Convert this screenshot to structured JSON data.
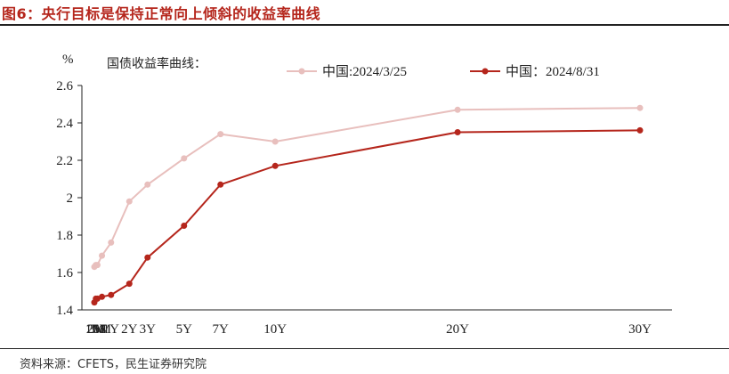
{
  "figure": {
    "title": "图6：央行目标是保持正常向上倾斜的收益率曲线",
    "source": "资料来源：CFETS，民生证券研究院"
  },
  "chart_data": {
    "type": "line",
    "title": "国债收益率曲线：",
    "ylabel": "%",
    "ylim": [
      1.4,
      2.6
    ],
    "yticks": [
      1.4,
      1.6,
      1.8,
      2.0,
      2.2,
      2.4,
      2.6
    ],
    "ytick_labels": [
      "1.4",
      "1.6",
      "1.8",
      "2",
      "2.2",
      "2.4",
      "2.6"
    ],
    "categories": [
      "1M",
      "2M",
      "3M",
      "6M",
      "1Y",
      "2Y",
      "3Y",
      "5Y",
      "7Y",
      "10Y",
      "20Y",
      "30Y"
    ],
    "x_years": [
      0.0833,
      0.1667,
      0.25,
      0.5,
      1,
      2,
      3,
      5,
      7,
      10,
      20,
      30
    ],
    "grid": false,
    "legend_position": "top",
    "series": [
      {
        "name": "中国:2024/3/25",
        "color": "#e8bfbd",
        "values": [
          1.63,
          1.64,
          1.64,
          1.69,
          1.76,
          1.98,
          2.07,
          2.21,
          2.34,
          2.3,
          2.47,
          2.48
        ]
      },
      {
        "name": "中国：2024/8/31",
        "color": "#b5261c",
        "values": [
          1.44,
          1.46,
          1.46,
          1.47,
          1.48,
          1.54,
          1.68,
          1.85,
          2.07,
          2.17,
          2.35,
          2.36
        ]
      }
    ]
  }
}
